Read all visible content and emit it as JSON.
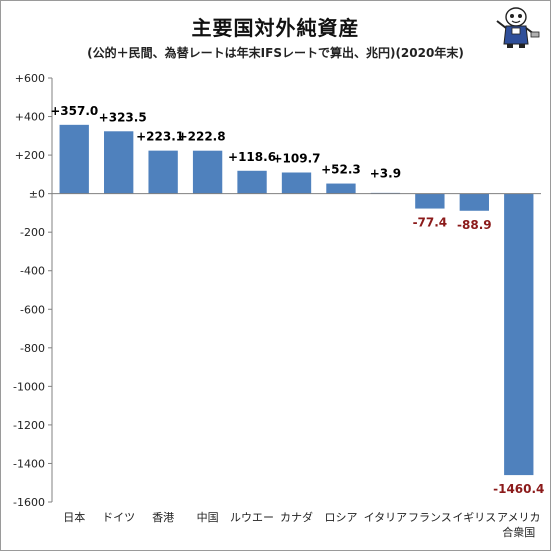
{
  "chart_data": {
    "type": "bar",
    "title": "主要国対外純資産",
    "subtitle": "(公的＋民間、為替レートは年末IFSレートで算出、兆円)(2020年末)",
    "categories": [
      "日本",
      "ドイツ",
      "香港",
      "中国",
      "ルウエー",
      "カナダ",
      "ロシア",
      "イタリア",
      "フランス",
      "イギリス",
      "アメリカ合衆国"
    ],
    "category_labels": [
      [
        "日本"
      ],
      [
        "ドイツ"
      ],
      [
        "香港"
      ],
      [
        "中国"
      ],
      [
        "ルウエー"
      ],
      [
        "カナダ"
      ],
      [
        "ロシア"
      ],
      [
        "イタリア"
      ],
      [
        "フランス"
      ],
      [
        "イギリス"
      ],
      [
        "アメリカ",
        "合衆国"
      ]
    ],
    "values": [
      357.0,
      323.5,
      223.1,
      222.8,
      118.6,
      109.7,
      52.3,
      3.9,
      -77.4,
      -88.9,
      -1460.4
    ],
    "data_labels": [
      "+357.0",
      "+323.5",
      "+223.1",
      "+222.8",
      "+118.6",
      "+109.7",
      "+52.3",
      "+3.9",
      "-77.4",
      "-88.9",
      "-1460.4"
    ],
    "yticks": [
      600,
      400,
      200,
      0,
      -200,
      -400,
      -600,
      -800,
      -1000,
      -1200,
      -1400,
      -1600
    ],
    "ytick_labels": [
      "+600",
      "+400",
      "+200",
      "±0",
      "-200",
      "-400",
      "-600",
      "-800",
      "-1000",
      "-1200",
      "-1400",
      "-1600"
    ],
    "ylim": [
      -1600,
      600
    ],
    "grid": false,
    "colors": {
      "bar": "#4f81bd",
      "positive_label": "#000000",
      "negative_label": "#8b1a1a"
    }
  }
}
